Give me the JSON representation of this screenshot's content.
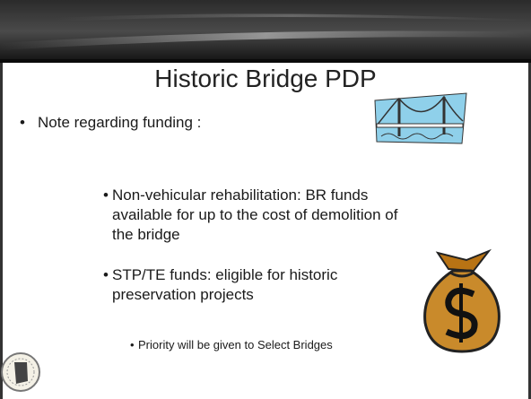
{
  "title": "Historic Bridge PDP",
  "bullets": [
    {
      "text": "Note regarding funding :",
      "sub_bullets": [
        {
          "text": "Non-vehicular rehabilitation: BR funds available for up to the cost of demolition of the bridge"
        },
        {
          "text": "STP/TE funds: eligible for historic preservation projects",
          "sub_bullets": [
            {
              "text": "Priority will be given to Select Bridges"
            }
          ]
        }
      ]
    }
  ]
}
